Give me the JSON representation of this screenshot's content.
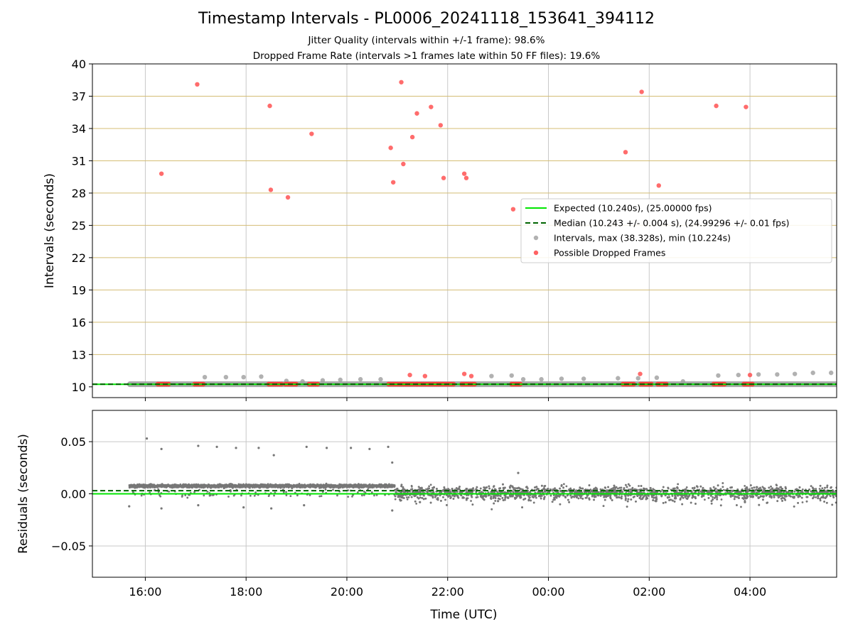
{
  "chart_data": [
    {
      "panel": "top",
      "type": "scatter",
      "title": "Timestamp Intervals - PL0006_20241118_153641_394112",
      "subtitle_lines": [
        "Jitter Quality (intervals within +/-1 frame): 98.6%",
        "Dropped Frame Rate (intervals >1 frames late within 50 FF files): 19.6%"
      ],
      "xlabel": "",
      "ylabel": "Intervals (seconds)",
      "xlim_hours": [
        14.95,
        29.72
      ],
      "ylim": [
        9.0,
        40.0
      ],
      "yticks": [
        10,
        13,
        16,
        19,
        22,
        25,
        28,
        31,
        34,
        37,
        40
      ],
      "horizontal_gridlines": [
        13,
        16,
        19,
        22,
        25,
        28,
        31,
        34,
        37,
        40
      ],
      "grid_colors": {
        "horizontal": "#d4bd74",
        "vertical": "#c8c8c8"
      },
      "expected_value": 10.24,
      "median_value": 10.243,
      "legend": {
        "position": "center-right",
        "entries": [
          {
            "label": "Expected (10.240s), (25.00000 fps)",
            "style": "solid-line",
            "color": "#00e600"
          },
          {
            "label": "Median (10.243 +/- 0.004 s), (24.99296 +/- 0.01 fps)",
            "style": "dashed-line",
            "color": "#006400"
          },
          {
            "label": "Intervals, max (38.328s), min (10.224s)",
            "style": "marker",
            "color": "#9e9e9e"
          },
          {
            "label": "Possible Dropped Frames",
            "style": "marker",
            "color": "#ff3b3b"
          }
        ]
      },
      "series": [
        {
          "name": "Intervals, max (38.328s), min (10.224s)",
          "color": "#9e9e9e",
          "band": {
            "x_start": 15.68,
            "x_end": 29.72,
            "y": 10.243
          },
          "points": [
            [
              17.18,
              10.9
            ],
            [
              17.6,
              10.9
            ],
            [
              17.95,
              10.9
            ],
            [
              18.3,
              10.95
            ],
            [
              18.8,
              10.55
            ],
            [
              19.12,
              10.5
            ],
            [
              19.52,
              10.6
            ],
            [
              19.87,
              10.65
            ],
            [
              20.27,
              10.7
            ],
            [
              20.67,
              10.7
            ],
            [
              22.87,
              11.0
            ],
            [
              23.27,
              11.05
            ],
            [
              23.5,
              10.7
            ],
            [
              23.86,
              10.7
            ],
            [
              24.26,
              10.75
            ],
            [
              24.7,
              10.75
            ],
            [
              25.38,
              10.8
            ],
            [
              25.78,
              10.8
            ],
            [
              26.15,
              10.85
            ],
            [
              26.67,
              10.5
            ],
            [
              27.37,
              11.05
            ],
            [
              27.77,
              11.1
            ],
            [
              28.17,
              11.15
            ],
            [
              28.54,
              11.15
            ],
            [
              28.89,
              11.2
            ],
            [
              29.25,
              11.3
            ],
            [
              29.61,
              11.3
            ]
          ]
        },
        {
          "name": "Possible Dropped Frames",
          "color": "#ff3b3b",
          "points": [
            [
              16.32,
              29.8
            ],
            [
              17.03,
              38.1
            ],
            [
              18.47,
              36.1
            ],
            [
              18.49,
              28.3
            ],
            [
              18.83,
              27.6
            ],
            [
              19.3,
              33.5
            ],
            [
              20.87,
              32.2
            ],
            [
              20.92,
              29.0
            ],
            [
              21.08,
              38.3
            ],
            [
              21.12,
              30.7
            ],
            [
              21.3,
              33.2
            ],
            [
              21.39,
              35.4
            ],
            [
              21.67,
              36.0
            ],
            [
              21.86,
              34.3
            ],
            [
              21.92,
              29.4
            ],
            [
              22.33,
              29.8
            ],
            [
              22.37,
              29.4
            ],
            [
              23.3,
              26.5
            ],
            [
              25.53,
              31.8
            ],
            [
              25.85,
              37.4
            ],
            [
              26.19,
              28.7
            ],
            [
              27.33,
              36.1
            ],
            [
              27.92,
              36.0
            ],
            [
              21.25,
              11.1
            ],
            [
              21.55,
              11.0
            ],
            [
              22.33,
              11.2
            ],
            [
              22.47,
              11.0
            ],
            [
              25.82,
              11.2
            ],
            [
              28.0,
              11.1
            ]
          ],
          "clusters_near_baseline": [
            [
              16.25,
              16.47
            ],
            [
              16.98,
              17.18
            ],
            [
              18.45,
              18.72
            ],
            [
              18.78,
              19.0
            ],
            [
              19.25,
              19.45
            ],
            [
              20.83,
              21.4
            ],
            [
              21.4,
              21.62
            ],
            [
              21.65,
              22.12
            ],
            [
              22.28,
              22.55
            ],
            [
              23.27,
              23.47
            ],
            [
              25.48,
              25.72
            ],
            [
              25.83,
              26.05
            ],
            [
              26.17,
              26.35
            ],
            [
              27.28,
              27.52
            ],
            [
              27.88,
              28.08
            ]
          ],
          "cluster_y": 10.25
        }
      ]
    },
    {
      "panel": "bottom",
      "type": "scatter",
      "xlabel": "Time (UTC)",
      "ylabel": "Residuals (seconds)",
      "xlim_hours": [
        14.95,
        29.72
      ],
      "ylim": [
        -0.08,
        0.08
      ],
      "yticks": [
        -0.05,
        0.0,
        0.05
      ],
      "ytick_labels": [
        "−0.05",
        "0.00",
        "0.05"
      ],
      "xticks_hours": [
        16,
        18,
        20,
        22,
        24,
        26,
        28
      ],
      "xtick_labels": [
        "16:00",
        "18:00",
        "20:00",
        "22:00",
        "00:00",
        "02:00",
        "04:00"
      ],
      "expected_residual": 0.0,
      "median_residual": 0.003,
      "series": [
        {
          "name": "Residuals",
          "color": "#777777",
          "segments": [
            {
              "x_start": 15.68,
              "x_end": 20.95,
              "center": 0.0075,
              "spread": 0.0015,
              "density": 2200
            },
            {
              "x_start": 20.95,
              "x_end": 29.72,
              "center": 0.001,
              "spread": 0.006,
              "density": 3200
            }
          ],
          "outliers": [
            [
              16.03,
              0.053
            ],
            [
              16.32,
              0.043
            ],
            [
              17.05,
              0.046
            ],
            [
              17.42,
              0.045
            ],
            [
              17.8,
              0.044
            ],
            [
              18.25,
              0.044
            ],
            [
              18.55,
              0.037
            ],
            [
              19.2,
              0.045
            ],
            [
              19.6,
              0.044
            ],
            [
              20.08,
              0.044
            ],
            [
              20.45,
              0.043
            ],
            [
              20.82,
              0.045
            ],
            [
              20.9,
              0.03
            ],
            [
              23.4,
              0.02
            ],
            [
              15.68,
              -0.012
            ],
            [
              16.32,
              -0.014
            ],
            [
              17.05,
              -0.011
            ],
            [
              17.95,
              -0.013
            ],
            [
              18.5,
              -0.014
            ],
            [
              19.15,
              -0.011
            ],
            [
              20.9,
              -0.016
            ],
            [
              21.45,
              -0.008
            ],
            [
              23.0,
              -0.007
            ],
            [
              26.4,
              -0.006
            ],
            [
              27.9,
              -0.008
            ]
          ]
        }
      ]
    }
  ]
}
